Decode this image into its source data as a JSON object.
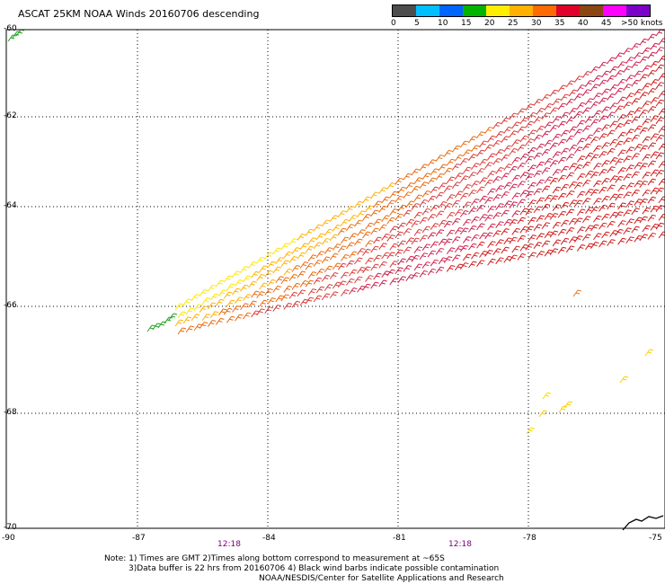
{
  "title": "ASCAT 25KM NOAA Winds 20160706 descending",
  "legend": {
    "colors": [
      "#4d4d4d",
      "#00bfff",
      "#0064ff",
      "#00b400",
      "#ffee00",
      "#ffb000",
      "#ff6a00",
      "#e0002a",
      "#8b4513",
      "#ff00ff",
      "#7b00c8"
    ],
    "tick_labels": [
      "0",
      "5",
      "10",
      "15",
      "20",
      "25",
      "30",
      "35",
      "40",
      "45",
      ">50 knots"
    ]
  },
  "axes": {
    "lon_labels": [
      "-90",
      "-87",
      "-84",
      "-81",
      "-78",
      "-75"
    ],
    "lat_labels": [
      "-60",
      "-62",
      "-64",
      "-66",
      "-68",
      "-70"
    ],
    "grid": "dotted"
  },
  "time_labels": [
    "12:18",
    "12:18"
  ],
  "notes": [
    "Note: 1) Times are GMT 2)Times along bottom correspond to measurement at ~65S",
    "3)Data buffer is 22 hrs from 20160706 4) Black wind barbs indicate possible contamination",
    "NOAA/NESDIS/Center for Satellite Applications and Research"
  ],
  "swath": {
    "description_rows": 26,
    "speed_range_knots": [
      15,
      45
    ]
  }
}
